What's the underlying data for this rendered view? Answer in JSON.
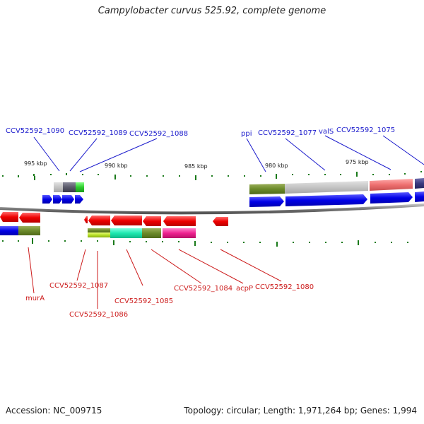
{
  "title": "Campylobacter curvus 525.92, complete genome",
  "footer": {
    "accession": "Accession: NC_009715",
    "summary": "Topology: circular; Length: 1,971,264 bp; Genes: 1,994"
  },
  "ticks": [
    {
      "label": "995 kbp"
    },
    {
      "label": "990 kbp"
    },
    {
      "label": "985 kbp"
    },
    {
      "label": "980 kbp"
    },
    {
      "label": "975 kbp"
    }
  ],
  "labels_top": [
    {
      "text": "CCV52592_1090"
    },
    {
      "text": "CCV52592_1089"
    },
    {
      "text": "CCV52592_1088"
    },
    {
      "text": "ppi"
    },
    {
      "text": "CCV52592_1077"
    },
    {
      "text": "valS"
    },
    {
      "text": "CCV52592_1075"
    }
  ],
  "labels_bottom": [
    {
      "text": "murA"
    },
    {
      "text": "CCV52592_1087"
    },
    {
      "text": "CCV52592_1086"
    },
    {
      "text": "CCV52592_1085"
    },
    {
      "text": "CCV52592_1084"
    },
    {
      "text": "acpP"
    },
    {
      "text": "CCV52592_1080"
    }
  ],
  "colors": {
    "forward_strand": "#0000ee",
    "reverse_strand": "#ee0000",
    "backbone": "#888888",
    "tick": "#1a7a1a",
    "label_forward": "#1a1acc",
    "label_reverse": "#cc1a1a"
  }
}
